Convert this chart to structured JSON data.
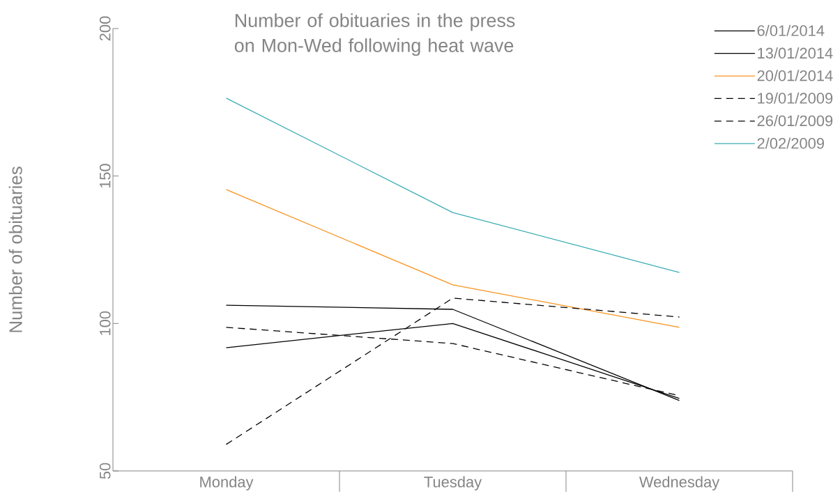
{
  "chart_data": {
    "type": "line",
    "title": "Number of obituaries in the press on Mon-Wed following heat wave",
    "ylabel": "Number of obituaries",
    "categories": [
      "Monday",
      "Tuesday",
      "Wednesday"
    ],
    "ylim": [
      50,
      200
    ],
    "yticks": [
      50,
      100,
      150,
      200
    ],
    "grid": false,
    "legend": "top right",
    "series": [
      {
        "name": "6/01/2014",
        "color": "#000000",
        "line_style": "solid",
        "values": [
          106.2,
          104.8,
          73.9
        ]
      },
      {
        "name": "13/01/2014",
        "color": "#000000",
        "line_style": "solid",
        "values": [
          91.8,
          100,
          74.6
        ]
      },
      {
        "name": "20/01/2014",
        "color": "#f7931e",
        "line_style": "solid",
        "values": [
          145.4,
          113.1,
          98.7
        ]
      },
      {
        "name": "19/01/2009",
        "color": "#000000",
        "line_style": "dashed",
        "values": [
          98.7,
          93.2,
          75.5
        ]
      },
      {
        "name": "26/01/2009",
        "color": "#000000",
        "line_style": "dashed",
        "values": [
          59,
          108.6,
          102.2
        ]
      },
      {
        "name": "2/02/2009",
        "color": "#3aacb4",
        "line_style": "solid",
        "values": [
          176.4,
          137.6,
          117.3
        ]
      }
    ]
  }
}
